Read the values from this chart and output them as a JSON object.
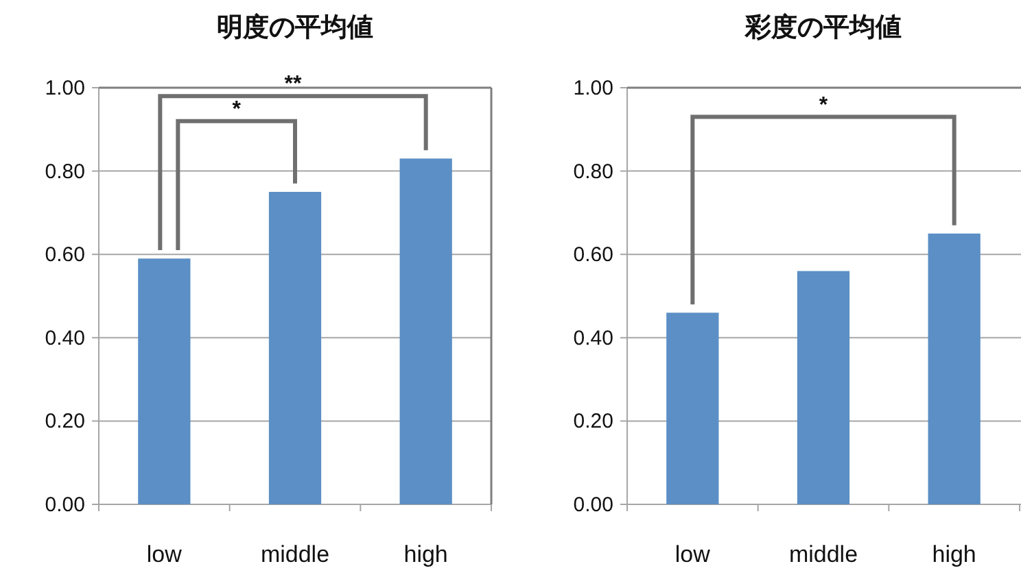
{
  "chart_data": [
    {
      "type": "bar",
      "title": "明度の平均値",
      "categories": [
        "low",
        "middle",
        "high"
      ],
      "values": [
        0.59,
        0.75,
        0.83
      ],
      "color": "#5b8fc5",
      "ylim": [
        0,
        1
      ],
      "yticks": [
        {
          "value": 0,
          "label": "0.00"
        },
        {
          "value": 0.2,
          "label": "0.20"
        },
        {
          "value": 0.4,
          "label": "0.40"
        },
        {
          "value": 0.6,
          "label": "0.60"
        },
        {
          "value": 0.8,
          "label": "0.80"
        },
        {
          "value": 1,
          "label": "1.00"
        }
      ],
      "grid": "y",
      "annotations": [
        "*",
        "**"
      ]
    },
    {
      "type": "bar",
      "title": "彩度の平均値",
      "categories": [
        "low",
        "middle",
        "high"
      ],
      "values": [
        0.46,
        0.56,
        0.65
      ],
      "color": "#5b8fc5",
      "ylim": [
        0,
        1
      ],
      "yticks": [
        {
          "value": 0,
          "label": "0.00"
        },
        {
          "value": 0.2,
          "label": "0.20"
        },
        {
          "value": 0.4,
          "label": "0.40"
        },
        {
          "value": 0.6,
          "label": "0.60"
        },
        {
          "value": 0.8,
          "label": "0.80"
        },
        {
          "value": 1,
          "label": "1.00"
        }
      ],
      "grid": "y",
      "annotations": [
        "*"
      ]
    }
  ]
}
